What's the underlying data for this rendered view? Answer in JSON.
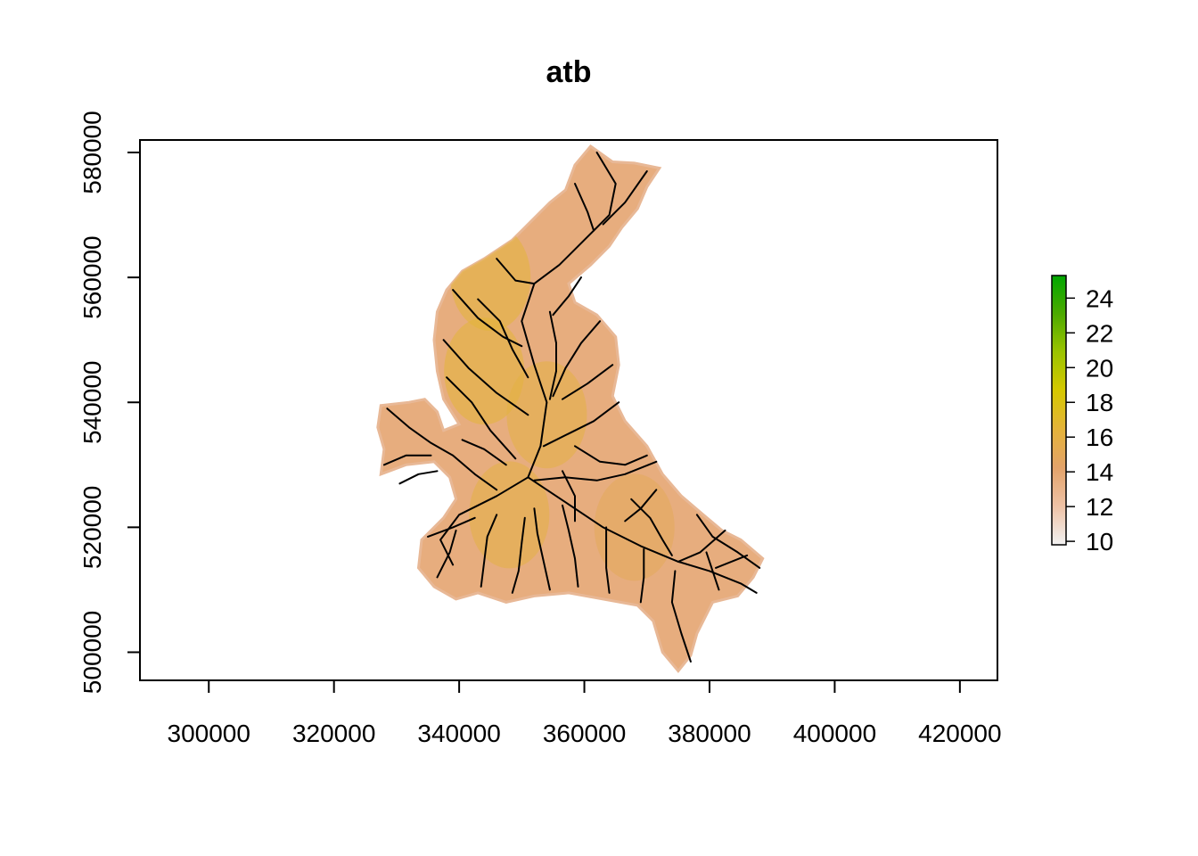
{
  "title": "atb",
  "x_axis": {
    "ticks": [
      300000,
      320000,
      340000,
      360000,
      380000,
      400000,
      420000
    ],
    "tick_labels": [
      "300000",
      "320000",
      "340000",
      "360000",
      "380000",
      "400000",
      "420000"
    ],
    "range": [
      289000,
      426000
    ]
  },
  "y_axis": {
    "ticks": [
      500000,
      520000,
      540000,
      560000,
      580000
    ],
    "tick_labels": [
      "500000",
      "520000",
      "540000",
      "560000",
      "580000"
    ],
    "range": [
      495500,
      582000
    ]
  },
  "legend": {
    "placement": "right",
    "range": [
      9.8,
      25.3
    ],
    "ticks": [
      10,
      12,
      14,
      16,
      18,
      20,
      22,
      24
    ],
    "tick_labels": [
      "10",
      "12",
      "14",
      "16",
      "18",
      "20",
      "22",
      "24"
    ],
    "colors": [
      "#f2f2f2",
      "#eec2a6",
      "#e3a36a",
      "#e4b33a",
      "#d6c800",
      "#9cc400",
      "#4daa00",
      "#00a600"
    ]
  },
  "chart_data": {
    "type": "heatmap",
    "title": "atb",
    "xlabel": "",
    "ylabel": "",
    "xlim": [
      289000,
      426000
    ],
    "ylim": [
      495500,
      582000
    ],
    "zlim": [
      9.8,
      25.3
    ],
    "typical_value": 13.5,
    "catchment_outline": [
      [
        361000,
        581000
      ],
      [
        364500,
        578500
      ],
      [
        368000,
        578300
      ],
      [
        372000,
        577500
      ],
      [
        370000,
        574500
      ],
      [
        368500,
        571000
      ],
      [
        366000,
        568000
      ],
      [
        364000,
        565000
      ],
      [
        361000,
        562000
      ],
      [
        357500,
        559000
      ],
      [
        358500,
        556000
      ],
      [
        362000,
        554000
      ],
      [
        365000,
        550500
      ],
      [
        365500,
        546000
      ],
      [
        364500,
        541000
      ],
      [
        366500,
        537000
      ],
      [
        370000,
        533000
      ],
      [
        372500,
        528500
      ],
      [
        375500,
        525000
      ],
      [
        379000,
        522000
      ],
      [
        382000,
        519500
      ],
      [
        385000,
        518000
      ],
      [
        388500,
        515000
      ],
      [
        387000,
        512000
      ],
      [
        384500,
        509000
      ],
      [
        380500,
        508000
      ],
      [
        378000,
        503000
      ],
      [
        377000,
        499500
      ],
      [
        375000,
        497000
      ],
      [
        372500,
        500000
      ],
      [
        371000,
        505000
      ],
      [
        368500,
        507500
      ],
      [
        363000,
        508500
      ],
      [
        357500,
        509500
      ],
      [
        352000,
        509000
      ],
      [
        347500,
        508000
      ],
      [
        343000,
        509500
      ],
      [
        339500,
        508500
      ],
      [
        336000,
        510500
      ],
      [
        333500,
        513500
      ],
      [
        334000,
        518000
      ],
      [
        337500,
        521500
      ],
      [
        339500,
        524500
      ],
      [
        338500,
        528000
      ],
      [
        336000,
        530500
      ],
      [
        331500,
        530000
      ],
      [
        327500,
        528500
      ],
      [
        328000,
        532500
      ],
      [
        327000,
        536000
      ],
      [
        327500,
        539500
      ],
      [
        332000,
        540000
      ],
      [
        334500,
        540500
      ],
      [
        336500,
        538500
      ],
      [
        337500,
        535500
      ],
      [
        340000,
        536500
      ],
      [
        337500,
        540500
      ],
      [
        336500,
        545000
      ],
      [
        336000,
        550000
      ],
      [
        336500,
        554500
      ],
      [
        338000,
        558000
      ],
      [
        340500,
        561000
      ],
      [
        344000,
        563000
      ],
      [
        348500,
        566000
      ],
      [
        351500,
        569000
      ],
      [
        354500,
        572000
      ],
      [
        357000,
        574000
      ],
      [
        358500,
        578000
      ]
    ],
    "greener_zones": [
      {
        "x": 344000,
        "y": 545000,
        "value": 16.5
      },
      {
        "x": 354000,
        "y": 538000,
        "value": 16.0
      },
      {
        "x": 348000,
        "y": 522000,
        "value": 16.0
      },
      {
        "x": 345000,
        "y": 560000,
        "value": 16.5
      },
      {
        "x": 368000,
        "y": 520000,
        "value": 15.0
      }
    ],
    "channels": [
      [
        [
          362000,
          580000
        ],
        [
          365000,
          575000
        ],
        [
          364000,
          570000
        ],
        [
          360000,
          566000
        ],
        [
          356000,
          562000
        ],
        [
          352000,
          559000
        ],
        [
          350000,
          553000
        ],
        [
          352000,
          546000
        ],
        [
          354000,
          540000
        ],
        [
          353000,
          533000
        ],
        [
          351000,
          528000
        ],
        [
          346000,
          525000
        ],
        [
          340000,
          522000
        ],
        [
          337000,
          518000
        ],
        [
          339000,
          514000
        ]
      ],
      [
        [
          370000,
          577000
        ],
        [
          366500,
          572000
        ],
        [
          363000,
          568500
        ]
      ],
      [
        [
          358500,
          575000
        ],
        [
          360500,
          570500
        ],
        [
          361500,
          567500
        ]
      ],
      [
        [
          346000,
          563000
        ],
        [
          349000,
          559500
        ],
        [
          352000,
          559000
        ]
      ],
      [
        [
          339000,
          558000
        ],
        [
          343000,
          553500
        ],
        [
          347000,
          550500
        ],
        [
          350000,
          549000
        ]
      ],
      [
        [
          337500,
          550000
        ],
        [
          341500,
          545500
        ],
        [
          346000,
          541500
        ],
        [
          351000,
          538000
        ]
      ],
      [
        [
          338000,
          544000
        ],
        [
          342000,
          540000
        ],
        [
          345000,
          535500
        ],
        [
          349000,
          531000
        ]
      ],
      [
        [
          362500,
          553000
        ],
        [
          359500,
          549500
        ],
        [
          357000,
          545500
        ],
        [
          355000,
          541000
        ]
      ],
      [
        [
          364500,
          546000
        ],
        [
          360500,
          543000
        ],
        [
          356500,
          540500
        ]
      ],
      [
        [
          365500,
          540000
        ],
        [
          361500,
          537000
        ],
        [
          357500,
          535000
        ],
        [
          353500,
          533000
        ]
      ],
      [
        [
          371500,
          530500
        ],
        [
          366500,
          528500
        ],
        [
          362000,
          527500
        ],
        [
          357000,
          528000
        ],
        [
          352000,
          527500
        ]
      ],
      [
        [
          351000,
          528000
        ],
        [
          357000,
          524000
        ],
        [
          363000,
          520000
        ],
        [
          369000,
          517000
        ],
        [
          375000,
          514500
        ],
        [
          380000,
          513000
        ],
        [
          385000,
          511000
        ],
        [
          387500,
          509500
        ]
      ],
      [
        [
          377000,
          498500
        ],
        [
          375500,
          503000
        ],
        [
          374000,
          508000
        ],
        [
          374500,
          513000
        ]
      ],
      [
        [
          382500,
          519500
        ],
        [
          378500,
          516000
        ],
        [
          375000,
          514500
        ]
      ],
      [
        [
          386000,
          515500
        ],
        [
          381000,
          513500
        ]
      ],
      [
        [
          328500,
          539000
        ],
        [
          332000,
          536000
        ],
        [
          335500,
          533500
        ],
        [
          339000,
          531500
        ],
        [
          342500,
          528500
        ],
        [
          346000,
          526000
        ]
      ],
      [
        [
          328000,
          530000
        ],
        [
          331500,
          531500
        ],
        [
          335500,
          531500
        ]
      ],
      [
        [
          330500,
          527000
        ],
        [
          333500,
          528500
        ],
        [
          336500,
          529000
        ]
      ],
      [
        [
          335000,
          518500
        ],
        [
          339000,
          520000
        ],
        [
          342500,
          521500
        ]
      ],
      [
        [
          336500,
          512000
        ],
        [
          338500,
          516000
        ],
        [
          339500,
          519500
        ]
      ],
      [
        [
          343500,
          510500
        ],
        [
          344000,
          514500
        ],
        [
          344500,
          518500
        ],
        [
          346000,
          522000
        ]
      ],
      [
        [
          348500,
          509500
        ],
        [
          349500,
          513000
        ],
        [
          350000,
          517500
        ],
        [
          350500,
          521500
        ]
      ],
      [
        [
          354500,
          510000
        ],
        [
          353500,
          514500
        ],
        [
          352500,
          519000
        ],
        [
          352000,
          523000
        ]
      ],
      [
        [
          359000,
          510500
        ],
        [
          358500,
          515000
        ],
        [
          357500,
          519500
        ],
        [
          356500,
          523500
        ]
      ],
      [
        [
          364000,
          509500
        ],
        [
          363500,
          513500
        ],
        [
          363500,
          517500
        ],
        [
          363500,
          520000
        ]
      ],
      [
        [
          369000,
          508000
        ],
        [
          369500,
          512000
        ],
        [
          369500,
          516500
        ]
      ],
      [
        [
          367500,
          524500
        ],
        [
          370500,
          521500
        ],
        [
          372500,
          518000
        ],
        [
          374000,
          515500
        ]
      ],
      [
        [
          358500,
          533000
        ],
        [
          362500,
          530500
        ],
        [
          366500,
          530000
        ],
        [
          370000,
          531500
        ]
      ],
      [
        [
          356500,
          529000
        ],
        [
          358500,
          525000
        ],
        [
          358500,
          521000
        ]
      ],
      [
        [
          371500,
          526000
        ],
        [
          369000,
          523000
        ],
        [
          366500,
          521000
        ]
      ],
      [
        [
          378000,
          522000
        ],
        [
          380500,
          518500
        ],
        [
          384500,
          516000
        ],
        [
          388000,
          513500
        ]
      ],
      [
        [
          381500,
          510000
        ],
        [
          380500,
          513000
        ],
        [
          379500,
          516000
        ]
      ],
      [
        [
          343000,
          556500
        ],
        [
          346500,
          553000
        ],
        [
          348500,
          548500
        ],
        [
          351000,
          544000
        ]
      ],
      [
        [
          354500,
          554500
        ],
        [
          355500,
          549500
        ],
        [
          355500,
          545000
        ],
        [
          354500,
          540500
        ]
      ],
      [
        [
          359500,
          560000
        ],
        [
          357500,
          557000
        ],
        [
          355000,
          554000
        ]
      ],
      [
        [
          340500,
          534000
        ],
        [
          344000,
          532500
        ],
        [
          347500,
          530000
        ]
      ]
    ]
  }
}
